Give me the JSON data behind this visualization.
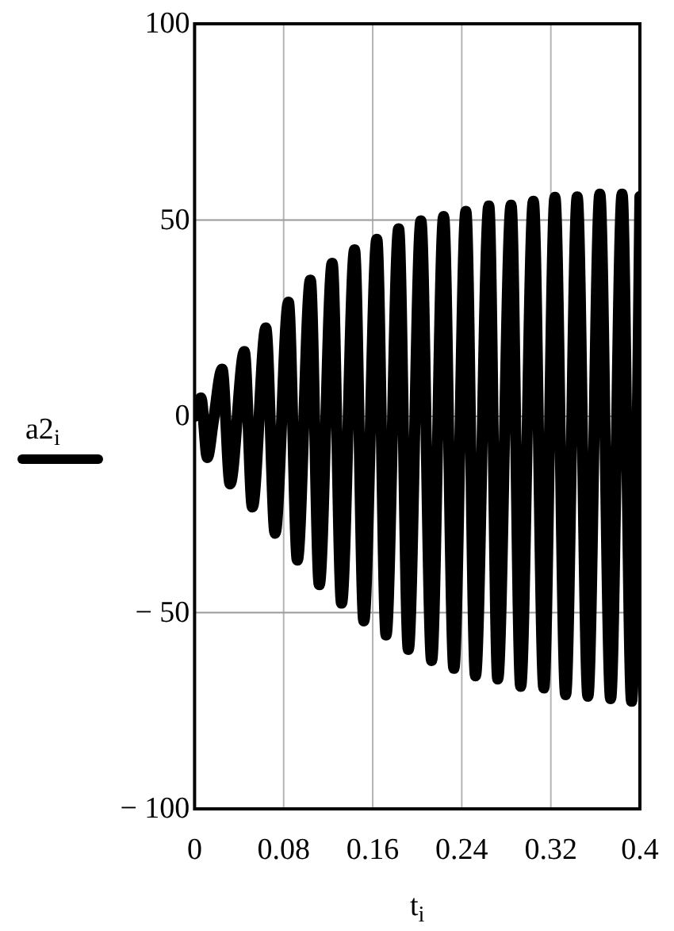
{
  "chart_data": {
    "type": "line",
    "xlabel": "t$_{i}$",
    "x": [
      0,
      0.0057,
      0.0114,
      0.017,
      0.0247,
      0.0319,
      0.0447,
      0.0519,
      0.064,
      0.0723,
      0.0843,
      0.0923,
      0.104,
      0.112,
      0.1236,
      0.132,
      0.1437,
      0.152,
      0.1637,
      0.172,
      0.1833,
      0.192,
      0.2033,
      0.2129,
      0.2237,
      0.2329,
      0.2437,
      0.2523,
      0.2643,
      0.2723,
      0.2843,
      0.2929,
      0.3043,
      0.3137,
      0.3237,
      0.3333,
      0.3437,
      0.3533,
      0.364,
      0.3737,
      0.384,
      0.3925,
      0.4
    ],
    "series": [
      {
        "name": "a2$_{i}$",
        "color": "#000000",
        "values": [
          0,
          4.7,
          -10.5,
          -1,
          12,
          -17.2,
          16.5,
          -23.1,
          22.5,
          -29.8,
          29.1,
          -36.6,
          34.7,
          -42.9,
          39,
          -47.6,
          42.4,
          -52.1,
          45.1,
          -55.7,
          47.8,
          -59.4,
          49.8,
          -62.2,
          50.9,
          -64.2,
          52.2,
          -66.1,
          53.6,
          -66.9,
          53.8,
          -68.8,
          54.8,
          -69.2,
          55.8,
          -70.9,
          55.9,
          -71.3,
          56.6,
          -71.9,
          56.6,
          -72.6,
          56
        ]
      }
    ],
    "xlim": [
      0,
      0.4
    ],
    "ylim": [
      -100,
      100
    ],
    "xticks": [
      0,
      0.08,
      0.16,
      0.24,
      0.32,
      0.4
    ],
    "yticks": [
      {
        "value": -100,
        "label": "− 100"
      },
      {
        "value": -50,
        "label": "− 50"
      },
      0,
      50,
      100
    ],
    "grid": true,
    "legend": "left",
    "line_style": "solid"
  }
}
